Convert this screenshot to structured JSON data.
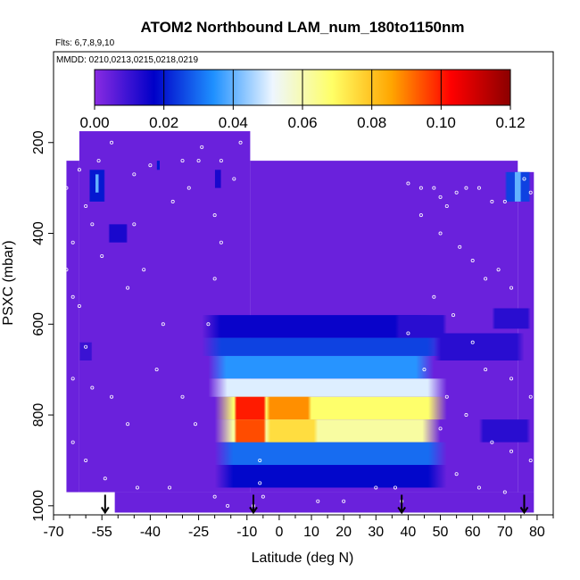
{
  "chart_data": {
    "type": "heatmap",
    "title": "ATOM2 Northbound LAM_num_180to1150nm",
    "subtitle_flights": "Flts: 6,7,8,9,10",
    "subtitle_dates": "MMDD: 0210,0213,0215,0218,0219",
    "xlabel": "Latitude (deg N)",
    "ylabel": "PSXC (mbar)",
    "xlim": [
      -70,
      85
    ],
    "ylim": [
      1020,
      0
    ],
    "x_ticks": [
      -70,
      -55,
      -40,
      -25,
      -10,
      0,
      10,
      20,
      30,
      40,
      50,
      60,
      70,
      80
    ],
    "y_ticks": [
      200,
      400,
      600,
      800,
      1000
    ],
    "colorbar": {
      "min": 0.0,
      "max": 0.12,
      "tick_values": [
        0.0,
        0.02,
        0.04,
        0.06,
        0.08,
        0.1,
        0.12
      ],
      "tick_labels": [
        "0.00",
        "0.02",
        "0.04",
        "0.06",
        "0.08",
        "0.10",
        "0.12"
      ],
      "colors": [
        "#8a2be2",
        "#0000c8",
        "#1e90ff",
        "#eef6ff",
        "#ffff66",
        "#ffa500",
        "#ff0000",
        "#8b0000"
      ]
    },
    "background_value": 0.004,
    "coverage": [
      {
        "lat": [
          -66,
          -62
        ],
        "p_top": 240,
        "p_bottom": 970
      },
      {
        "lat": [
          -62,
          -9
        ],
        "p_top": 175,
        "p_bottom": 970
      },
      {
        "lat": [
          -9,
          74
        ],
        "p_top": 240,
        "p_bottom": 970
      },
      {
        "lat": [
          74,
          79
        ],
        "p_top": 265,
        "p_bottom": 970
      },
      {
        "lat": [
          -51,
          79
        ],
        "p_top": 970,
        "p_bottom": 1015
      }
    ],
    "field": [
      {
        "lat": [
          -24,
          48
        ],
        "p": [
          580,
          630
        ],
        "value": 0.016
      },
      {
        "lat": [
          -24,
          52
        ],
        "p": [
          630,
          670
        ],
        "value": 0.025
      },
      {
        "lat": [
          -22,
          48
        ],
        "p": [
          670,
          720
        ],
        "value": 0.035
      },
      {
        "lat": [
          -22,
          52
        ],
        "p": [
          720,
          760
        ],
        "value": 0.05
      },
      {
        "lat": [
          -20,
          52
        ],
        "p": [
          760,
          810
        ],
        "value": 0.068
      },
      {
        "lat": [
          -20,
          50
        ],
        "p": [
          810,
          860
        ],
        "value": 0.062
      },
      {
        "lat": [
          -20,
          52
        ],
        "p": [
          860,
          910
        ],
        "value": 0.03
      },
      {
        "lat": [
          -20,
          52
        ],
        "p": [
          910,
          960
        ],
        "value": 0.018
      },
      {
        "lat": [
          -14,
          -4
        ],
        "p": [
          760,
          810
        ],
        "value": 0.1
      },
      {
        "lat": [
          -14,
          -4
        ],
        "p": [
          810,
          860
        ],
        "value": 0.095
      },
      {
        "lat": [
          -4,
          10
        ],
        "p": [
          760,
          810
        ],
        "value": 0.088
      },
      {
        "lat": [
          -4,
          12
        ],
        "p": [
          810,
          860
        ],
        "value": 0.075
      },
      {
        "lat": [
          36,
          52
        ],
        "p": [
          580,
          630
        ],
        "value": 0.012
      },
      {
        "lat": [
          48,
          76
        ],
        "p": [
          620,
          680
        ],
        "value": 0.012
      },
      {
        "lat": [
          66,
          78
        ],
        "p": [
          565,
          610
        ],
        "value": 0.012
      },
      {
        "lat": [
          62,
          78
        ],
        "p": [
          810,
          860
        ],
        "value": 0.012
      },
      {
        "lat": [
          70,
          78
        ],
        "p": [
          265,
          330
        ],
        "value": 0.025
      },
      {
        "lat": [
          73,
          75
        ],
        "p": [
          265,
          330
        ],
        "value": 0.04
      },
      {
        "lat": [
          -59,
          -54
        ],
        "p": [
          260,
          330
        ],
        "value": 0.02
      },
      {
        "lat": [
          -57,
          -56
        ],
        "p": [
          270,
          310
        ],
        "value": 0.04
      },
      {
        "lat": [
          -53,
          -47
        ],
        "p": [
          380,
          420
        ],
        "value": 0.014
      },
      {
        "lat": [
          -62,
          -58
        ],
        "p": [
          640,
          680
        ],
        "value": 0.01
      },
      {
        "lat": [
          -38,
          -37
        ],
        "p": [
          240,
          260
        ],
        "value": 0.02
      },
      {
        "lat": [
          -20,
          -18
        ],
        "p": [
          260,
          300
        ],
        "value": 0.014
      }
    ],
    "arrows_lat": [
      -54,
      -8,
      38,
      76
    ],
    "sample_points": [
      [
        -62,
        260
      ],
      [
        -56,
        240
      ],
      [
        -52,
        200
      ],
      [
        -45,
        270
      ],
      [
        -40,
        250
      ],
      [
        -30,
        240
      ],
      [
        -25,
        240
      ],
      [
        -18,
        240
      ],
      [
        -12,
        200
      ],
      [
        -60,
        340
      ],
      [
        -58,
        380
      ],
      [
        -64,
        420
      ],
      [
        -66,
        480
      ],
      [
        -62,
        560
      ],
      [
        -55,
        450
      ],
      [
        -47,
        520
      ],
      [
        -42,
        480
      ],
      [
        -33,
        330
      ],
      [
        -28,
        300
      ],
      [
        -20,
        360
      ],
      [
        -18,
        420
      ],
      [
        -60,
        650
      ],
      [
        -64,
        720
      ],
      [
        -58,
        740
      ],
      [
        -52,
        760
      ],
      [
        -47,
        820
      ],
      [
        -38,
        700
      ],
      [
        -30,
        760
      ],
      [
        -64,
        860
      ],
      [
        -60,
        900
      ],
      [
        -54,
        940
      ],
      [
        -44,
        960
      ],
      [
        -34,
        960
      ],
      [
        -20,
        980
      ],
      [
        -16,
        1000
      ],
      [
        -8,
        1000
      ],
      [
        -6,
        950
      ],
      [
        -6,
        900
      ],
      [
        -5,
        980
      ],
      [
        12,
        990
      ],
      [
        36,
        960
      ],
      [
        38,
        990
      ],
      [
        40,
        290
      ],
      [
        44,
        300
      ],
      [
        48,
        300
      ],
      [
        50,
        320
      ],
      [
        52,
        340
      ],
      [
        55,
        310
      ],
      [
        58,
        300
      ],
      [
        62,
        300
      ],
      [
        66,
        330
      ],
      [
        70,
        330
      ],
      [
        76,
        280
      ],
      [
        78,
        310
      ],
      [
        80,
        340
      ],
      [
        80,
        400
      ],
      [
        44,
        360
      ],
      [
        50,
        400
      ],
      [
        56,
        430
      ],
      [
        60,
        460
      ],
      [
        64,
        500
      ],
      [
        68,
        480
      ],
      [
        72,
        520
      ],
      [
        48,
        540
      ],
      [
        54,
        580
      ],
      [
        60,
        640
      ],
      [
        64,
        700
      ],
      [
        72,
        720
      ],
      [
        78,
        760
      ],
      [
        52,
        760
      ],
      [
        58,
        800
      ],
      [
        66,
        860
      ],
      [
        72,
        880
      ],
      [
        78,
        900
      ],
      [
        55,
        930
      ],
      [
        62,
        960
      ],
      [
        70,
        970
      ],
      [
        -24,
        210
      ],
      [
        -14,
        280
      ],
      [
        -22,
        600
      ],
      [
        -20,
        500
      ],
      [
        40,
        620
      ],
      [
        45,
        700
      ],
      [
        50,
        830
      ],
      [
        -66,
        300
      ],
      [
        -64,
        540
      ],
      [
        -45,
        380
      ],
      [
        -36,
        600
      ],
      [
        -26,
        820
      ],
      [
        20,
        990
      ],
      [
        30,
        960
      ]
    ]
  }
}
